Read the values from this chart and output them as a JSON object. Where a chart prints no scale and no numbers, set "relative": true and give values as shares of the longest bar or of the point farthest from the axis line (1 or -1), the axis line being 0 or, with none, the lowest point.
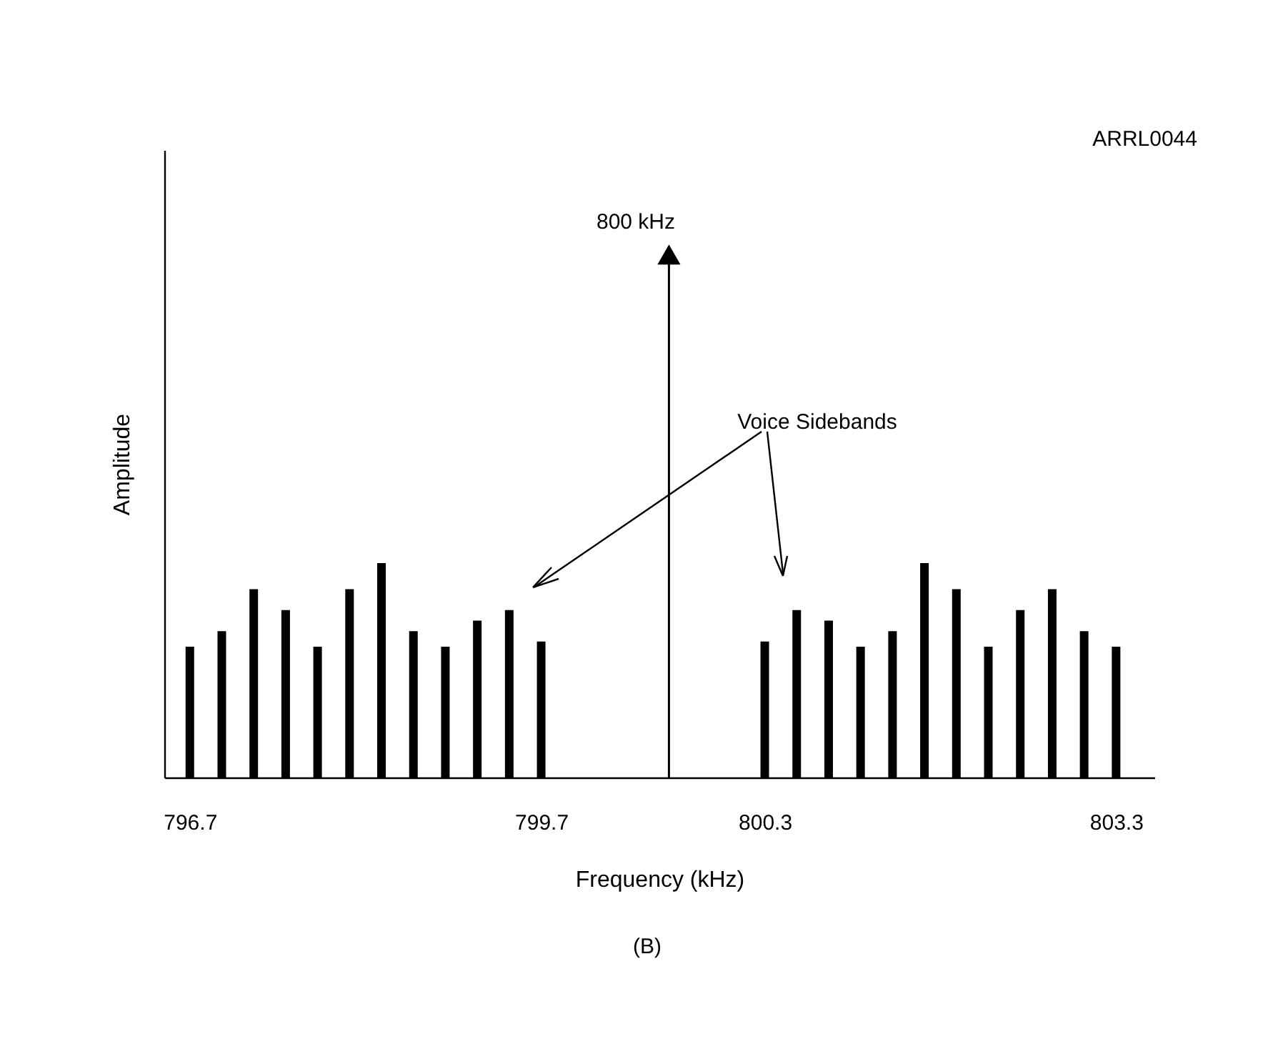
{
  "chart_data": {
    "type": "bar",
    "relative": true,
    "xlabel": "Frequency (kHz)",
    "ylabel": "Amplitude",
    "categories": [
      "796.7",
      null,
      null,
      null,
      null,
      null,
      null,
      null,
      null,
      null,
      null,
      "799.7",
      null,
      null,
      null,
      null,
      null,
      null,
      "800.3",
      null,
      null,
      null,
      null,
      null,
      null,
      null,
      null,
      null,
      null,
      "803.3"
    ],
    "series": [
      {
        "color": "#000000",
        "values": [
          0.25,
          0.28,
          0.36,
          0.32,
          0.25,
          0.36,
          0.41,
          0.28,
          0.25,
          0.3,
          0.32,
          0.26,
          null,
          null,
          null,
          null,
          null,
          null,
          0.26,
          0.32,
          0.3,
          0.25,
          0.28,
          0.41,
          0.36,
          0.25,
          0.32,
          0.36,
          0.28,
          0.25
        ]
      },
      {
        "type": "lollipop",
        "color": "#000000",
        "marker": "triangle",
        "values": [
          null,
          null,
          null,
          null,
          null,
          null,
          null,
          null,
          null,
          null,
          null,
          null,
          null,
          null,
          null,
          1,
          null,
          null,
          null,
          null,
          null,
          null,
          null,
          null,
          null,
          null,
          null,
          null,
          null,
          null
        ]
      }
    ],
    "annotations": [
      "800 kHz",
      "Voice Sidebands",
      "ARRL0044",
      "(B)"
    ]
  }
}
